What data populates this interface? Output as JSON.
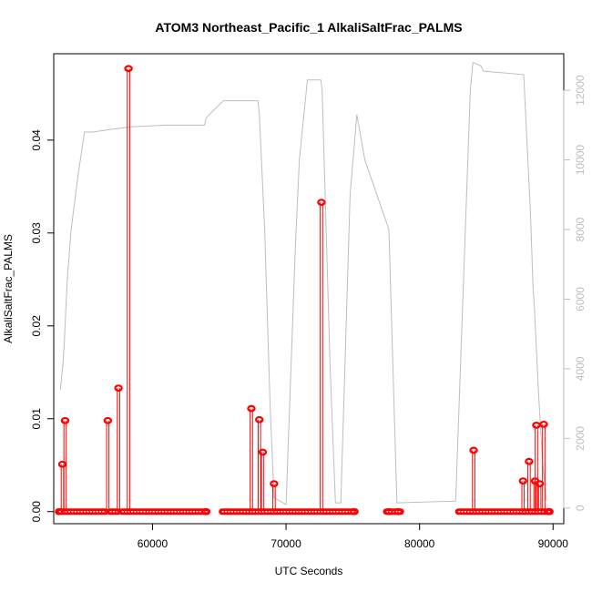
{
  "chart_data": {
    "type": "line",
    "title": "ATOM3 Northeast_Pacific_1 AlkaliSaltFrac_PALMS",
    "xlabel": "UTC Seconds",
    "ylabel": "AlkaliSaltFrac_PALMS",
    "y2label": "",
    "xlim": [
      52600,
      90800
    ],
    "ylim": [
      -0.0013,
      0.0493
    ],
    "y2lim": [
      -450,
      13050
    ],
    "x_ticks": [
      60000,
      70000,
      80000,
      90000
    ],
    "y_ticks": [
      0.0,
      0.01,
      0.02,
      0.03,
      0.04
    ],
    "y_tick_labels": [
      "0.00",
      "0.01",
      "0.02",
      "0.03",
      "0.04"
    ],
    "y2_ticks": [
      0,
      2000,
      4000,
      6000,
      8000,
      10000,
      12000
    ],
    "colors": {
      "primary": "#ff0000",
      "secondary": "#bebebe",
      "axis": "#000000"
    },
    "grid": false,
    "legend": "none",
    "series": [
      {
        "axis": "right",
        "style": "line",
        "color": "#bebebe",
        "points": [
          [
            53100,
            3400
          ],
          [
            53300,
            4200
          ],
          [
            53400,
            4800
          ],
          [
            53600,
            6500
          ],
          [
            53900,
            8000
          ],
          [
            54400,
            9500
          ],
          [
            54900,
            10800
          ],
          [
            55500,
            10800
          ],
          [
            57300,
            10900
          ],
          [
            58400,
            10950
          ],
          [
            61000,
            11000
          ],
          [
            63900,
            11000
          ],
          [
            64000,
            11200
          ],
          [
            64500,
            11400
          ],
          [
            65300,
            11700
          ],
          [
            67900,
            11700
          ],
          [
            68000,
            11300
          ],
          [
            68400,
            8000
          ],
          [
            68800,
            3000
          ],
          [
            69100,
            300
          ],
          [
            70000,
            100
          ],
          [
            70700,
            7500
          ],
          [
            71000,
            10000
          ],
          [
            71600,
            12300
          ],
          [
            72600,
            12300
          ],
          [
            72700,
            12000
          ],
          [
            73300,
            4000
          ],
          [
            73700,
            150
          ],
          [
            74100,
            150
          ],
          [
            74800,
            9000
          ],
          [
            75300,
            11300
          ],
          [
            75900,
            10000
          ],
          [
            77700,
            8000
          ],
          [
            78300,
            150
          ],
          [
            82700,
            200
          ],
          [
            83800,
            12000
          ],
          [
            84000,
            12800
          ],
          [
            84600,
            12700
          ],
          [
            84800,
            12550
          ],
          [
            86300,
            12500
          ],
          [
            87800,
            12450
          ],
          [
            88300,
            8500
          ],
          [
            88500,
            6300
          ],
          [
            88600,
            5800
          ],
          [
            88900,
            3400
          ],
          [
            89200,
            1400
          ],
          [
            89500,
            200
          ]
        ]
      },
      {
        "axis": "left",
        "style": "points-with-stems",
        "color": "#ff0000",
        "baseline_segments": [
          [
            53000,
            56500
          ],
          [
            56800,
            57400
          ],
          [
            57700,
            64100
          ],
          [
            65200,
            75200
          ],
          [
            77500,
            78600
          ],
          [
            82900,
            89800
          ]
        ],
        "points": [
          [
            53000,
            0.0
          ],
          [
            53250,
            0.0051
          ],
          [
            53450,
            0.0098
          ],
          [
            56650,
            0.0098
          ],
          [
            57450,
            0.0133
          ],
          [
            58200,
            0.0477
          ],
          [
            67400,
            0.0111
          ],
          [
            68000,
            0.0099
          ],
          [
            68250,
            0.0064
          ],
          [
            69100,
            0.003
          ],
          [
            72650,
            0.0333
          ],
          [
            84050,
            0.0066
          ],
          [
            87750,
            0.0033
          ],
          [
            88200,
            0.0054
          ],
          [
            88650,
            0.0033
          ],
          [
            88750,
            0.0093
          ],
          [
            89000,
            0.003
          ],
          [
            89300,
            0.0094
          ],
          [
            89700,
            0.0
          ],
          [
            77700,
            0.0
          ],
          [
            78400,
            0.0
          ],
          [
            75100,
            0.0
          ],
          [
            64000,
            0.0
          ]
        ]
      }
    ]
  }
}
